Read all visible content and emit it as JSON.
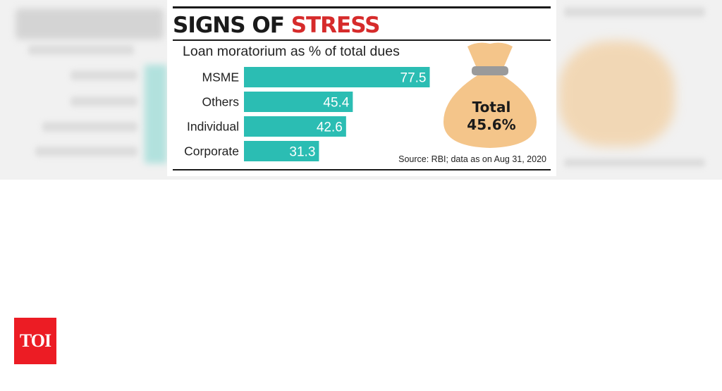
{
  "headline": {
    "part1": "SIGNS OF ",
    "part2": "STRESS"
  },
  "colors": {
    "bar": "#2bbdb3",
    "accent": "#d62b2b",
    "bag": "#f4c58a",
    "bag_tie": "#9a9a9a",
    "logo_bg": "#ec1c24"
  },
  "chart_data": {
    "type": "bar",
    "orientation": "horizontal",
    "title": "Loan moratorium as % of total dues",
    "categories": [
      "MSME",
      "Others",
      "Individual",
      "Corporate"
    ],
    "values": [
      77.5,
      45.4,
      42.6,
      31.3
    ],
    "value_labels": [
      "77.5",
      "45.4",
      "42.6",
      "31.3"
    ],
    "xlim": [
      0,
      100
    ],
    "grid": false,
    "legend": "none"
  },
  "total": {
    "label": "Total",
    "value": "45.6%"
  },
  "source": "Source: RBI; data as on Aug 31, 2020",
  "logo": {
    "text": "TOI"
  }
}
